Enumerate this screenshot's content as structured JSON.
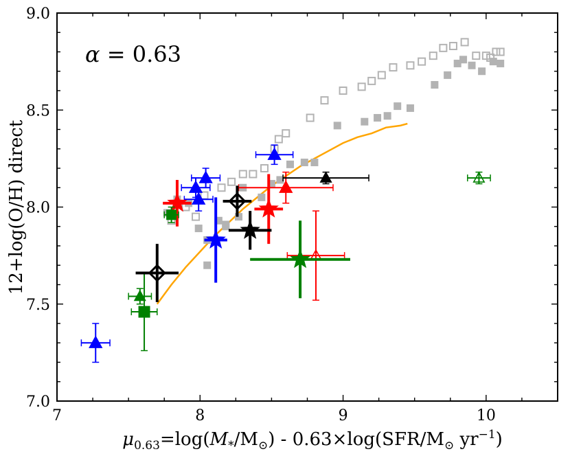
{
  "chart_data": {
    "type": "scatter",
    "title": "",
    "xlabel": "μ0.63=log(M*/M⊙) - 0.63×log(SFR/M⊙ yr−1)",
    "xlabel_parts": {
      "mu": "μ",
      "mu_sub": "0.63",
      "eq": "=log(",
      "m": "M",
      "m_sub": "*",
      "slash_msun": "/M",
      "sun": "⊙",
      "mid": ") - 0.63×log(SFR/M",
      "sun2": "⊙",
      "yr": " yr",
      "exp": "−1",
      "close": ")"
    },
    "ylabel": "12+log(O/H) direct",
    "xlim": [
      7.0,
      10.5
    ],
    "ylim": [
      7.0,
      9.0
    ],
    "xticks": [
      7,
      8,
      9,
      10
    ],
    "xtick_labels": [
      "7",
      "8",
      "9",
      "10"
    ],
    "yticks": [
      7.0,
      7.5,
      8.0,
      8.5,
      9.0
    ],
    "ytick_labels": [
      "7.0",
      "7.5",
      "8.0",
      "8.5",
      "9.0"
    ],
    "annotation": {
      "alpha": "α",
      "eq": " = 0.63"
    },
    "curve": {
      "name": "fit",
      "color": "#FFA500",
      "x": [
        7.7,
        7.8,
        7.9,
        8.0,
        8.1,
        8.2,
        8.3,
        8.4,
        8.5,
        8.6,
        8.7,
        8.8,
        8.9,
        9.0,
        9.1,
        9.2,
        9.3,
        9.4,
        9.45
      ],
      "y": [
        7.5,
        7.6,
        7.69,
        7.77,
        7.85,
        7.92,
        7.99,
        8.05,
        8.11,
        8.16,
        8.21,
        8.25,
        8.29,
        8.33,
        8.36,
        8.38,
        8.41,
        8.42,
        8.43
      ]
    },
    "gray_filled_squares": {
      "color": "#b3b3b3",
      "x": [
        7.77,
        7.84,
        7.92,
        7.99,
        8.05,
        8.05,
        8.13,
        8.18,
        8.18,
        8.27,
        8.3,
        8.43,
        8.5,
        8.56,
        8.63,
        8.73,
        8.8,
        8.96,
        9.15,
        9.24,
        9.31,
        9.38,
        9.47,
        9.64,
        9.73,
        9.8,
        9.84,
        9.9,
        9.97,
        10.05,
        10.1
      ],
      "y": [
        7.97,
        8.04,
        8.02,
        7.89,
        7.7,
        7.83,
        7.93,
        7.9,
        7.91,
        7.95,
        8.1,
        8.05,
        8.12,
        8.14,
        8.22,
        8.23,
        8.23,
        8.42,
        8.44,
        8.46,
        8.47,
        8.52,
        8.51,
        8.63,
        8.68,
        8.74,
        8.76,
        8.73,
        8.7,
        8.75,
        8.74
      ]
    },
    "gray_open_squares": {
      "color": "#b3b3b3",
      "x": [
        7.8,
        7.9,
        7.97,
        8.03,
        8.15,
        8.22,
        8.3,
        8.37,
        8.45,
        8.52,
        8.55,
        8.6,
        8.77,
        8.87,
        9.0,
        9.13,
        9.2,
        9.27,
        9.35,
        9.47,
        9.55,
        9.63,
        9.7,
        9.77,
        9.85,
        9.93,
        10.0,
        10.03,
        10.07,
        10.1
      ],
      "y": [
        7.93,
        8.0,
        7.95,
        8.06,
        8.1,
        8.13,
        8.17,
        8.17,
        8.2,
        8.3,
        8.35,
        8.38,
        8.46,
        8.55,
        8.6,
        8.62,
        8.65,
        8.68,
        8.72,
        8.73,
        8.75,
        8.78,
        8.82,
        8.83,
        8.85,
        8.78,
        8.78,
        8.77,
        8.8,
        8.8
      ]
    },
    "points": [
      {
        "marker": "triangle",
        "color": "#0000ff",
        "fill": true,
        "size": 16,
        "x": 7.27,
        "y": 7.3,
        "xerr": 0.1,
        "yerr": 0.1
      },
      {
        "marker": "triangle",
        "color": "#0000ff",
        "fill": true,
        "size": 16,
        "x": 7.97,
        "y": 8.1,
        "xerr": 0.1,
        "yerr": 0.05
      },
      {
        "marker": "triangle",
        "color": "#0000ff",
        "fill": true,
        "size": 16,
        "x": 7.99,
        "y": 8.04,
        "xerr": 0.1,
        "yerr": 0.06
      },
      {
        "marker": "triangle",
        "color": "#0000ff",
        "fill": true,
        "size": 16,
        "x": 8.04,
        "y": 8.15,
        "xerr": 0.1,
        "yerr": 0.05
      },
      {
        "marker": "triangle",
        "color": "#0000ff",
        "fill": true,
        "size": 16,
        "x": 8.52,
        "y": 8.27,
        "xerr": 0.13,
        "yerr": 0.05
      },
      {
        "marker": "star",
        "color": "#0000ff",
        "fill": true,
        "size": 28,
        "x": 8.11,
        "y": 7.83,
        "xerr": 0.08,
        "yerr": 0.22,
        "lw": 4
      },
      {
        "marker": "star",
        "color": "#ff0000",
        "fill": true,
        "size": 28,
        "x": 7.84,
        "y": 8.02,
        "xerr": 0.1,
        "yerr": 0.12,
        "lw": 4
      },
      {
        "marker": "star",
        "color": "#ff0000",
        "fill": true,
        "size": 28,
        "x": 8.48,
        "y": 7.99,
        "xerr": 0.1,
        "yerr": 0.18,
        "lw": 4
      },
      {
        "marker": "triangle",
        "color": "#ff0000",
        "fill": true,
        "size": 16,
        "x": 8.6,
        "y": 8.1,
        "xerr": 0.33,
        "yerr": 0.08
      },
      {
        "marker": "triangle",
        "color": "#ff0000",
        "fill": false,
        "size": 14,
        "x": 8.81,
        "y": 7.75,
        "xerr": 0.2,
        "yerr": 0.23
      },
      {
        "marker": "triangle",
        "color": "#008000",
        "fill": true,
        "size": 14,
        "x": 7.58,
        "y": 7.54,
        "xerr": 0.08,
        "yerr": 0.04
      },
      {
        "marker": "square",
        "color": "#008000",
        "fill": true,
        "size": 16,
        "x": 7.61,
        "y": 7.46,
        "xerr": 0.09,
        "yerr": 0.2
      },
      {
        "marker": "square",
        "color": "#008000",
        "fill": true,
        "size": 14,
        "x": 7.8,
        "y": 7.96,
        "xerr": 0.05,
        "yerr": 0.04
      },
      {
        "marker": "star",
        "color": "#008000",
        "fill": true,
        "size": 28,
        "x": 8.7,
        "y": 7.73,
        "xerr": 0.35,
        "yerr": 0.2,
        "lw": 4
      },
      {
        "marker": "triangle",
        "color": "#008000",
        "fill": false,
        "size": 14,
        "x": 9.95,
        "y": 8.15,
        "xerr": 0.08,
        "yerr": 0.03
      },
      {
        "marker": "diamond",
        "color": "#000000",
        "fill": false,
        "size": 22,
        "x": 7.7,
        "y": 7.66,
        "xerr": 0.15,
        "yerr": 0.15,
        "lw": 4
      },
      {
        "marker": "diamond",
        "color": "#000000",
        "fill": false,
        "size": 22,
        "x": 8.26,
        "y": 8.03,
        "xerr": 0.1,
        "yerr": 0.08,
        "lw": 4
      },
      {
        "marker": "star",
        "color": "#000000",
        "fill": true,
        "size": 28,
        "x": 8.35,
        "y": 7.88,
        "xerr": 0.15,
        "yerr": 0.1,
        "lw": 4
      },
      {
        "marker": "triangle",
        "color": "#000000",
        "fill": true,
        "size": 14,
        "x": 8.88,
        "y": 8.15,
        "xerr": 0.3,
        "yerr": 0.03
      }
    ]
  }
}
